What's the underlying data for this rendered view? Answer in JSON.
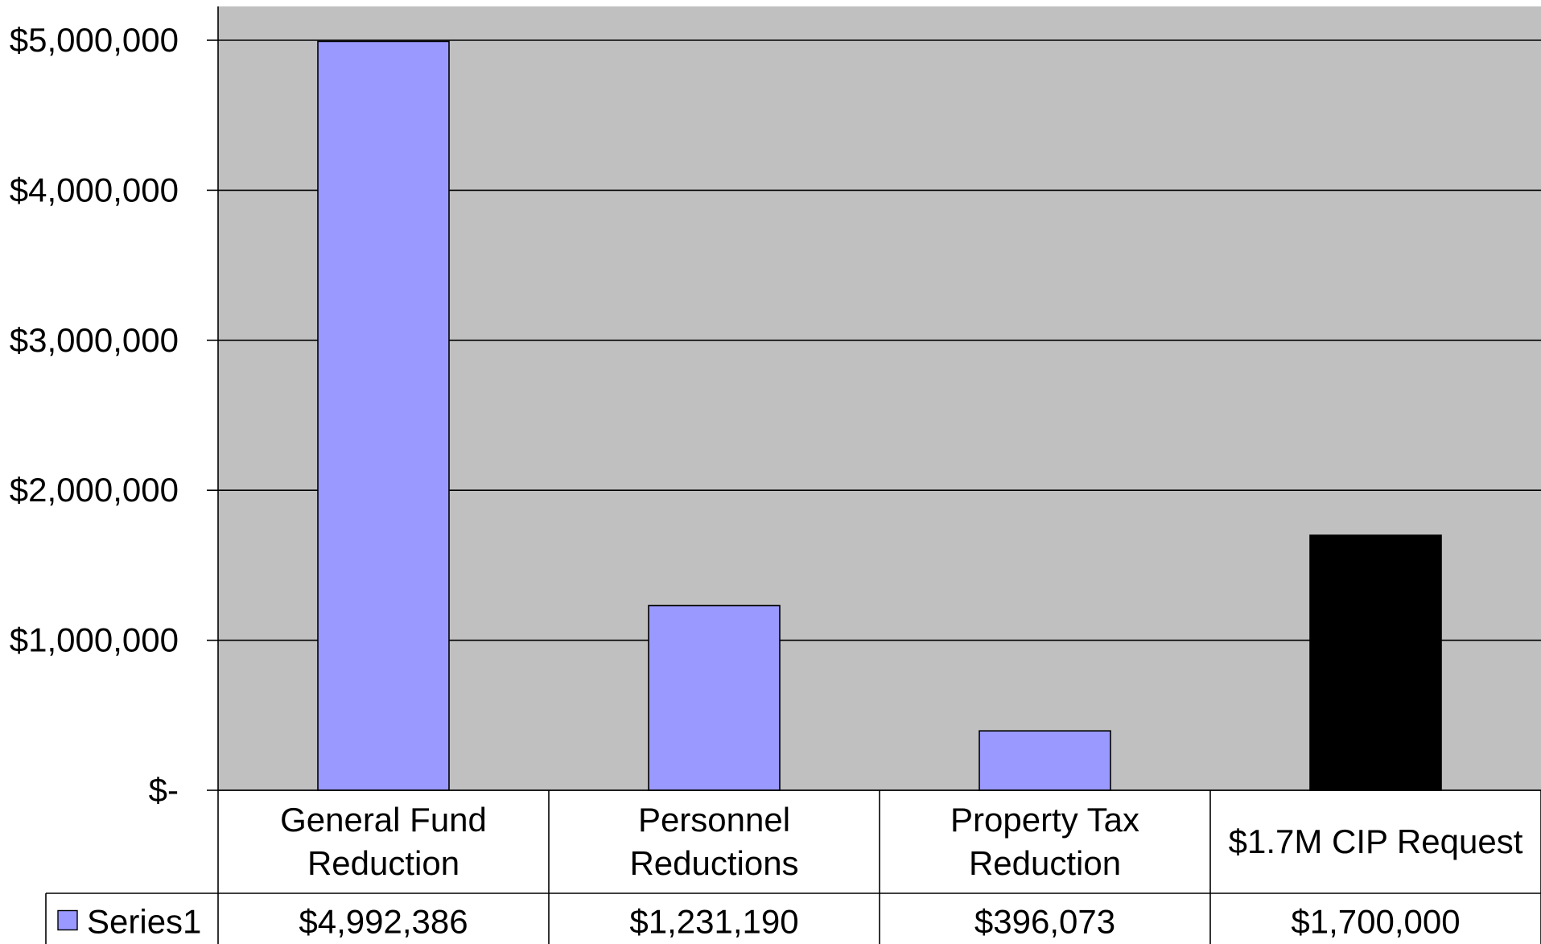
{
  "chart_data": {
    "type": "bar",
    "categories": [
      [
        "General Fund",
        "Reduction"
      ],
      [
        "Personnel",
        "Reductions"
      ],
      [
        "Property Tax",
        "Reduction"
      ],
      [
        "$1.7M CIP Request"
      ]
    ],
    "series": [
      {
        "name": "Series1",
        "values": [
          4992386,
          1231190,
          396073,
          1700000
        ],
        "value_labels": [
          "$4,992,386",
          "$1,231,190",
          "$396,073",
          "$1,700,000"
        ],
        "colors": [
          "#9999ff",
          "#9999ff",
          "#9999ff",
          "#000000"
        ]
      }
    ],
    "yticks": [
      {
        "value": 5000000,
        "label": "$5,000,000"
      },
      {
        "value": 4000000,
        "label": "$4,000,000"
      },
      {
        "value": 3000000,
        "label": "$3,000,000"
      },
      {
        "value": 2000000,
        "label": "$2,000,000"
      },
      {
        "value": 1000000,
        "label": "$1,000,000"
      },
      {
        "value": 0,
        "label": "$-"
      }
    ],
    "ylim": [
      0,
      5000000
    ],
    "grid": true,
    "legend": "data-table",
    "plot_background": "#c0c0c0",
    "title": "",
    "xlabel": "",
    "ylabel": ""
  }
}
